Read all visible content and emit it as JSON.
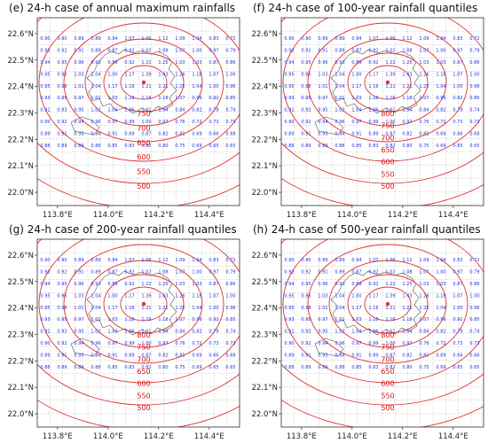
{
  "panels": [
    {
      "title": "(e) 24-h case of annual maximum rainfalls",
      "contour_labels": [
        "750",
        "700",
        "650",
        "600",
        "550",
        "500"
      ]
    },
    {
      "title": "(f) 24-h case of 100-year rainfall quantiles",
      "contour_labels": [
        "800",
        "750",
        "700",
        "650",
        "600",
        "550",
        "500"
      ]
    },
    {
      "title": "(g) 24-h case of 200-year rainfall quantiles",
      "contour_labels": [
        "800",
        "750",
        "700",
        "650",
        "600",
        "550",
        "500"
      ]
    },
    {
      "title": "(h) 24-h case of 500-year rainfall quantiles",
      "contour_labels": [
        "800",
        "750",
        "700",
        "650",
        "600",
        "550",
        "500"
      ]
    }
  ],
  "y_axis_labels": [
    "22.6°N",
    "22.5°N",
    "22.4°N",
    "22.3°N",
    "22.2°N",
    "22.1°N",
    "22.0°N"
  ],
  "x_axis_labels": [
    "113.8°E",
    "114.0°E",
    "114.2°E",
    "114.4°E"
  ],
  "ratio_grid": [
    [
      "0.90",
      "0.90",
      "0.89",
      "0.89",
      "0.94",
      "1.07",
      "1.06",
      "1.12",
      "1.09",
      "1.04",
      "0.83",
      "0.72"
    ],
    [
      "0.92",
      "0.92",
      "0.91",
      "0.89",
      "0.87",
      "0.92",
      "1.02",
      "1.08",
      "1.07",
      "1.00",
      "0.97",
      "0.79"
    ],
    [
      "0.94",
      "0.95",
      "0.96",
      "0.93",
      "0.89",
      "0.92",
      "1.22",
      "1.25",
      "1.03",
      "1.03",
      "0.87",
      "0.86"
    ],
    [
      "0.95",
      "0.96",
      "1.03",
      "1.04",
      "1.00",
      "1.17",
      "1.39",
      "1.43",
      "1.26",
      "1.18",
      "1.07",
      "1.00"
    ],
    [
      "0.95",
      "0.98",
      "1.01",
      "1.04",
      "1.17",
      "1.16",
      "1.21",
      "1.21",
      "1.25",
      "1.04",
      "1.00",
      "0.96"
    ],
    [
      "0.93",
      "0.95",
      "0.97",
      "1.01",
      "1.03",
      "1.18",
      "1.16",
      "1.18",
      "1.07",
      "0.96",
      "0.92",
      "0.85"
    ],
    [
      "0.91",
      "0.93",
      "0.95",
      "1.02",
      "1.04",
      "1.06",
      "1.01",
      "1.04",
      "0.84",
      "0.82",
      "0.79",
      "0.74"
    ],
    [
      "0.90",
      "0.92",
      "0.94",
      "0.96",
      "0.97",
      "0.99",
      "1.00",
      "0.97",
      "0.76",
      "0.72",
      "0.73",
      "0.73"
    ],
    [
      "0.89",
      "0.91",
      "0.93",
      "0.94",
      "0.91",
      "0.89",
      "0.87",
      "0.82",
      "0.81",
      "0.69",
      "0.66",
      "0.68"
    ],
    [
      "0.88",
      "0.89",
      "0.89",
      "0.88",
      "0.85",
      "0.83",
      "0.82",
      "0.80",
      "0.75",
      "0.69",
      "0.65",
      "0.65"
    ]
  ],
  "colors": {
    "contour": "#e03030",
    "ratio_text": "#2233dd",
    "grid": "#bbbbbb",
    "coastline": "#555555"
  }
}
